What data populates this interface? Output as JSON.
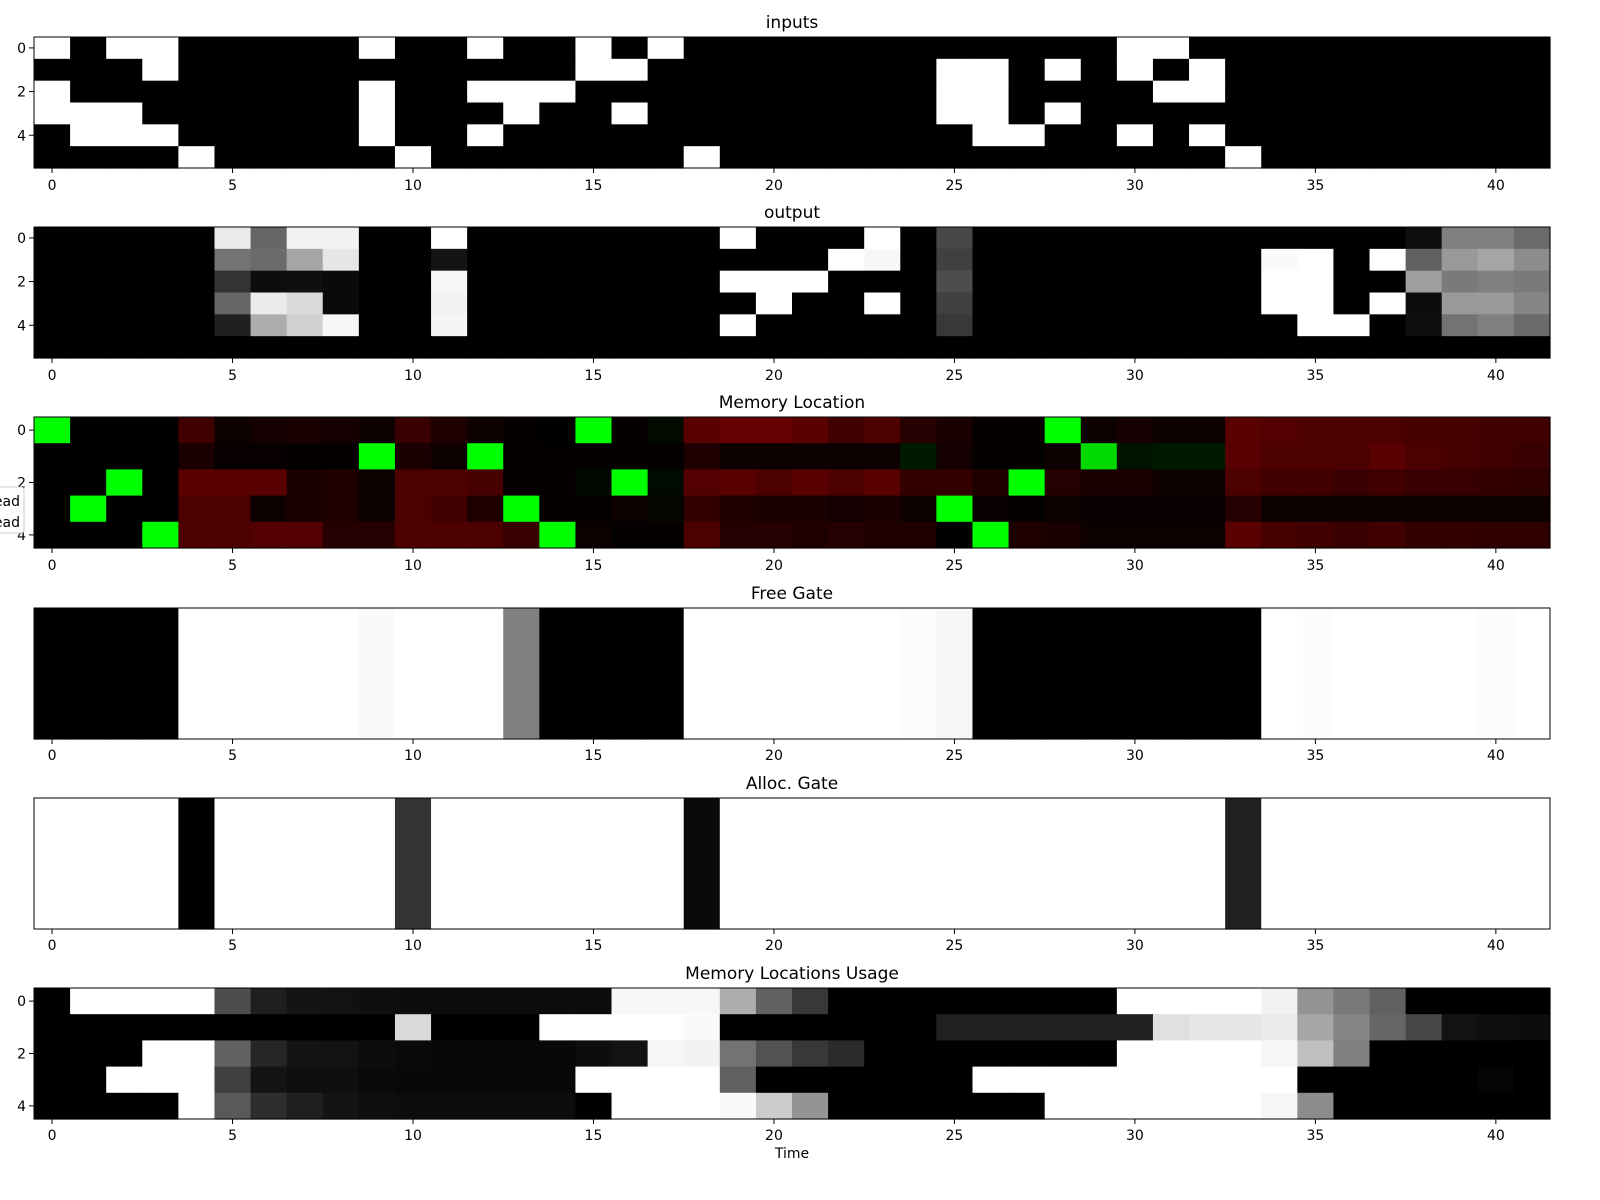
{
  "chart_data": [
    {
      "type": "heatmap",
      "title": "inputs",
      "colormap": "gray",
      "xlim": [
        0,
        41
      ],
      "xticks": [
        0,
        5,
        10,
        15,
        20,
        25,
        30,
        35,
        40
      ],
      "yticks": [
        0,
        2,
        4
      ],
      "values": [
        [
          1,
          0,
          1,
          1,
          0,
          0,
          0,
          0,
          0,
          1,
          0,
          0,
          1,
          0,
          0,
          1,
          0,
          1,
          0,
          0,
          0,
          0,
          0,
          0,
          0,
          0,
          0,
          0,
          0,
          0,
          1,
          1,
          0,
          0,
          0,
          0,
          0,
          0,
          0,
          0,
          0,
          0
        ],
        [
          0,
          0,
          0,
          1,
          0,
          0,
          0,
          0,
          0,
          0,
          0,
          0,
          0,
          0,
          0,
          1,
          1,
          0,
          0,
          0,
          0,
          0,
          0,
          0,
          0,
          1,
          1,
          0,
          1,
          0,
          1,
          0,
          1,
          0,
          0,
          0,
          0,
          0,
          0,
          0,
          0,
          0
        ],
        [
          1,
          0,
          0,
          0,
          0,
          0,
          0,
          0,
          0,
          1,
          0,
          0,
          1,
          1,
          1,
          0,
          0,
          0,
          0,
          0,
          0,
          0,
          0,
          0,
          0,
          1,
          1,
          0,
          0,
          0,
          0,
          1,
          1,
          0,
          0,
          0,
          0,
          0,
          0,
          0,
          0,
          0
        ],
        [
          1,
          1,
          1,
          0,
          0,
          0,
          0,
          0,
          0,
          1,
          0,
          0,
          0,
          1,
          0,
          0,
          1,
          0,
          0,
          0,
          0,
          0,
          0,
          0,
          0,
          1,
          1,
          0,
          1,
          0,
          0,
          0,
          0,
          0,
          0,
          0,
          0,
          0,
          0,
          0,
          0,
          0
        ],
        [
          0,
          1,
          1,
          1,
          0,
          0,
          0,
          0,
          0,
          1,
          0,
          0,
          1,
          0,
          0,
          0,
          0,
          0,
          0,
          0,
          0,
          0,
          0,
          0,
          0,
          0,
          1,
          1,
          0,
          0,
          1,
          0,
          1,
          0,
          0,
          0,
          0,
          0,
          0,
          0,
          0,
          0
        ],
        [
          0,
          0,
          0,
          0,
          1,
          0,
          0,
          0,
          0,
          0,
          1,
          0,
          0,
          0,
          0,
          0,
          0,
          0,
          1,
          0,
          0,
          0,
          0,
          0,
          0,
          0,
          0,
          0,
          0,
          0,
          0,
          0,
          0,
          1,
          0,
          0,
          0,
          0,
          0,
          0,
          0,
          0
        ]
      ]
    },
    {
      "type": "heatmap",
      "title": "output",
      "colormap": "gray",
      "xlim": [
        0,
        41
      ],
      "xticks": [
        0,
        5,
        10,
        15,
        20,
        25,
        30,
        35,
        40
      ],
      "yticks": [
        0,
        2,
        4
      ],
      "values": [
        [
          0,
          0,
          0,
          0,
          0,
          0.92,
          0.4,
          0.95,
          0.95,
          0,
          0,
          1,
          0,
          0,
          0,
          0,
          0,
          0,
          0,
          1,
          0,
          0,
          0,
          1,
          0,
          0.28,
          0,
          0,
          0,
          0,
          0,
          0,
          0,
          0,
          0,
          0,
          0,
          0,
          0.06,
          0.5,
          0.5,
          0.42
        ],
        [
          0,
          0,
          0,
          0,
          0,
          0.45,
          0.42,
          0.65,
          0.9,
          0,
          0,
          0.08,
          0,
          0,
          0,
          0,
          0,
          0,
          0,
          0,
          0,
          0,
          1,
          0.97,
          0,
          0.25,
          0,
          0,
          0,
          0,
          0,
          0,
          0,
          0,
          0.98,
          1,
          0,
          1,
          0.38,
          0.6,
          0.65,
          0.55
        ],
        [
          0,
          0,
          0,
          0,
          0,
          0.2,
          0.05,
          0.06,
          0.04,
          0,
          0,
          0.97,
          0,
          0,
          0,
          0,
          0,
          0,
          0,
          1,
          1,
          1,
          0,
          0,
          0,
          0.3,
          0,
          0,
          0,
          0,
          0,
          0,
          0,
          0,
          1,
          1,
          0,
          0,
          0.62,
          0.48,
          0.5,
          0.48
        ],
        [
          0,
          0,
          0,
          0,
          0,
          0.4,
          0.92,
          0.85,
          0.04,
          0,
          0,
          0.95,
          0,
          0,
          0,
          0,
          0,
          0,
          0,
          0,
          1,
          0,
          0,
          1,
          0,
          0.25,
          0,
          0,
          0,
          0,
          0,
          0,
          0,
          0,
          1,
          1,
          0,
          1,
          0.05,
          0.6,
          0.6,
          0.52
        ],
        [
          0,
          0,
          0,
          0,
          0,
          0.12,
          0.68,
          0.82,
          0.97,
          0,
          0,
          0.96,
          0,
          0,
          0,
          0,
          0,
          0,
          0,
          1,
          0,
          0,
          0,
          0,
          0,
          0.22,
          0,
          0,
          0,
          0,
          0,
          0,
          0,
          0,
          0,
          1,
          1,
          0,
          0.06,
          0.45,
          0.5,
          0.42
        ],
        [
          0,
          0,
          0,
          0,
          0,
          0,
          0,
          0,
          0,
          0,
          0,
          0,
          0,
          0,
          0,
          0,
          0,
          0,
          0,
          0,
          0,
          0,
          0,
          0,
          0,
          0,
          0,
          0,
          0,
          0,
          0,
          0,
          0,
          0,
          0,
          0,
          0,
          0,
          0,
          0,
          0,
          0
        ]
      ]
    },
    {
      "type": "heatmap",
      "title": "Memory Location",
      "colormap": "red-green",
      "xlim": [
        0,
        41
      ],
      "xticks": [
        0,
        5,
        10,
        15,
        20,
        25,
        30,
        35,
        40
      ],
      "yticks": [
        0,
        2,
        4
      ],
      "legend": [
        "ead",
        "ead"
      ],
      "legend_position": "left",
      "green": [
        [
          1,
          0,
          0,
          0,
          0,
          0,
          0,
          0,
          0,
          0,
          0,
          0,
          0,
          0,
          0,
          1,
          0,
          0.04,
          0,
          0,
          0,
          0,
          0,
          0,
          0,
          0,
          0,
          0,
          1,
          0,
          0,
          0,
          0,
          0,
          0,
          0,
          0,
          0,
          0,
          0,
          0,
          0
        ],
        [
          0,
          0,
          0,
          0,
          0,
          0,
          0,
          0,
          0,
          1,
          0,
          0,
          1,
          0,
          0,
          0,
          0,
          0,
          0,
          0,
          0,
          0,
          0,
          0,
          0.1,
          0,
          0,
          0,
          0,
          0.85,
          0.08,
          0.1,
          0.1,
          0,
          0,
          0,
          0,
          0,
          0,
          0,
          0,
          0
        ],
        [
          0,
          0,
          1,
          0,
          0,
          0,
          0,
          0,
          0,
          0,
          0,
          0,
          0,
          0,
          0,
          0.03,
          1,
          0.04,
          0,
          0,
          0,
          0,
          0,
          0,
          0,
          0,
          0,
          1,
          0,
          0,
          0,
          0,
          0,
          0,
          0,
          0,
          0,
          0,
          0,
          0,
          0,
          0
        ],
        [
          0,
          1,
          0,
          0,
          0,
          0,
          0,
          0,
          0,
          0,
          0,
          0,
          0,
          1,
          0,
          0,
          0,
          0.02,
          0,
          0,
          0,
          0,
          0,
          0,
          0,
          1,
          0,
          0,
          0,
          0,
          0,
          0,
          0,
          0,
          0,
          0,
          0,
          0,
          0,
          0,
          0,
          0
        ],
        [
          0,
          0,
          0,
          1,
          0,
          0,
          0,
          0,
          0,
          0,
          0,
          0,
          0,
          0,
          1,
          0,
          0,
          0,
          0,
          0,
          0,
          0,
          0,
          0,
          0,
          0,
          1,
          0,
          0,
          0,
          0,
          0,
          0,
          0,
          0,
          0,
          0,
          0,
          0,
          0,
          0,
          0
        ]
      ],
      "red": [
        [
          0,
          0,
          0,
          0,
          0.25,
          0.05,
          0.08,
          0.1,
          0.08,
          0.05,
          0.22,
          0.12,
          0.05,
          0.02,
          0,
          0,
          0.02,
          0.02,
          0.35,
          0.4,
          0.4,
          0.35,
          0.25,
          0.3,
          0.15,
          0.1,
          0.02,
          0.02,
          0,
          0.05,
          0.08,
          0.05,
          0.05,
          0.35,
          0.32,
          0.3,
          0.3,
          0.3,
          0.28,
          0.28,
          0.25,
          0.25
        ],
        [
          0,
          0,
          0,
          0,
          0.1,
          0.03,
          0.03,
          0.02,
          0.02,
          0,
          0.1,
          0.05,
          0,
          0.02,
          0.02,
          0.02,
          0.02,
          0.02,
          0.12,
          0.05,
          0.05,
          0.05,
          0.05,
          0.05,
          0,
          0.08,
          0.02,
          0.02,
          0.05,
          0,
          0,
          0,
          0,
          0.35,
          0.3,
          0.3,
          0.3,
          0.35,
          0.3,
          0.28,
          0.25,
          0.22
        ],
        [
          0,
          0,
          0,
          0,
          0.35,
          0.35,
          0.35,
          0.1,
          0.12,
          0.05,
          0.3,
          0.3,
          0.28,
          0.02,
          0.02,
          0,
          0,
          0,
          0.32,
          0.35,
          0.3,
          0.35,
          0.3,
          0.35,
          0.2,
          0.2,
          0.12,
          0,
          0.15,
          0.1,
          0.1,
          0.05,
          0.05,
          0.3,
          0.25,
          0.25,
          0.22,
          0.25,
          0.22,
          0.22,
          0.2,
          0.18
        ],
        [
          0,
          0,
          0,
          0,
          0.3,
          0.3,
          0.05,
          0.1,
          0.12,
          0.05,
          0.3,
          0.25,
          0.12,
          0,
          0.02,
          0.02,
          0.05,
          0.02,
          0.2,
          0.12,
          0.1,
          0.1,
          0.08,
          0.1,
          0.05,
          0,
          0.03,
          0.02,
          0.05,
          0.03,
          0.03,
          0.03,
          0.03,
          0.15,
          0.05,
          0.05,
          0.05,
          0.05,
          0.05,
          0.05,
          0.05,
          0.05
        ],
        [
          0,
          0,
          0,
          0,
          0.3,
          0.3,
          0.32,
          0.32,
          0.15,
          0.15,
          0.3,
          0.3,
          0.3,
          0.22,
          0,
          0.05,
          0.02,
          0.02,
          0.3,
          0.15,
          0.15,
          0.12,
          0.15,
          0.12,
          0.12,
          0,
          0,
          0.12,
          0.1,
          0.05,
          0.05,
          0.05,
          0.05,
          0.35,
          0.28,
          0.25,
          0.22,
          0.25,
          0.2,
          0.2,
          0.18,
          0.18
        ]
      ]
    },
    {
      "type": "heatmap",
      "title": "Free Gate",
      "colormap": "gray",
      "xlim": [
        0,
        41
      ],
      "xticks": [
        0,
        5,
        10,
        15,
        20,
        25,
        30,
        35,
        40
      ],
      "yticks": [],
      "values": [
        [
          0,
          0,
          0,
          0,
          1,
          1,
          1,
          1,
          1,
          0.98,
          1,
          1,
          1,
          0.5,
          0,
          0,
          0,
          0,
          1,
          1,
          1,
          1,
          1,
          1,
          0.99,
          0.97,
          0,
          0,
          0,
          0,
          0,
          0,
          0,
          0,
          1,
          0.99,
          1,
          1,
          1,
          1,
          0.99,
          1
        ]
      ]
    },
    {
      "type": "heatmap",
      "title": "Alloc. Gate",
      "colormap": "gray",
      "xlim": [
        0,
        41
      ],
      "xticks": [
        0,
        5,
        10,
        15,
        20,
        25,
        30,
        35,
        40
      ],
      "yticks": [],
      "values": [
        [
          1,
          1,
          1,
          1,
          0,
          1,
          1,
          1,
          1,
          1,
          0.2,
          1,
          1,
          1,
          1,
          1,
          1,
          1,
          0.04,
          1,
          1,
          1,
          1,
          1,
          1,
          1,
          1,
          1,
          1,
          1,
          1,
          1,
          1,
          0.13,
          1,
          1,
          1,
          1,
          1,
          1,
          1,
          1
        ]
      ]
    },
    {
      "type": "heatmap",
      "title": "Memory Locations Usage",
      "colormap": "gray",
      "xlim": [
        0,
        41
      ],
      "xticks": [
        0,
        5,
        10,
        15,
        20,
        25,
        30,
        35,
        40
      ],
      "yticks": [
        0,
        2,
        4
      ],
      "xlabel": "Time",
      "values": [
        [
          0,
          1,
          1,
          1,
          1,
          0.3,
          0.12,
          0.08,
          0.07,
          0.06,
          0.05,
          0.05,
          0.05,
          0.05,
          0.05,
          0.05,
          0.97,
          0.97,
          0.97,
          0.68,
          0.38,
          0.22,
          0,
          0,
          0,
          0,
          0,
          0,
          0,
          0,
          1,
          1,
          1,
          1,
          0.95,
          0.58,
          0.48,
          0.38,
          0,
          0,
          0,
          0
        ],
        [
          0,
          0,
          0,
          0,
          0,
          0,
          0,
          0,
          0,
          0,
          0.85,
          0,
          0,
          0,
          1,
          1,
          1,
          1,
          0.98,
          0,
          0,
          0,
          0,
          0,
          0,
          0.13,
          0.13,
          0.13,
          0.13,
          0.13,
          0.13,
          0.88,
          0.9,
          0.9,
          0.92,
          0.65,
          0.52,
          0.4,
          0.28,
          0.07,
          0.06,
          0.05
        ],
        [
          0,
          0,
          0,
          1,
          1,
          0.38,
          0.15,
          0.08,
          0.07,
          0.05,
          0.04,
          0.03,
          0.03,
          0.03,
          0.03,
          0.05,
          0.07,
          0.97,
          0.95,
          0.45,
          0.32,
          0.22,
          0.17,
          0,
          0,
          0,
          0,
          0,
          0,
          0,
          1,
          1,
          1,
          1,
          0.97,
          0.75,
          0.5,
          0,
          0,
          0,
          0,
          0
        ],
        [
          0,
          0,
          1,
          1,
          1,
          0.25,
          0.08,
          0.06,
          0.06,
          0.04,
          0.03,
          0.03,
          0.03,
          0.03,
          0.03,
          1,
          1,
          1,
          1,
          0.38,
          0,
          0,
          0,
          0,
          0,
          0,
          1,
          1,
          1,
          1,
          1,
          1,
          1,
          1,
          1,
          0,
          0,
          0,
          0,
          0,
          0.02,
          0
        ],
        [
          0,
          0,
          0,
          0,
          1,
          0.35,
          0.18,
          0.12,
          0.08,
          0.06,
          0.05,
          0.05,
          0.05,
          0.05,
          0.05,
          0,
          1,
          1,
          1,
          0.98,
          0.8,
          0.58,
          0,
          0,
          0,
          0,
          0,
          0,
          1,
          1,
          1,
          1,
          1,
          1,
          0.97,
          0.55,
          0,
          0,
          0,
          0,
          0,
          0
        ]
      ]
    }
  ]
}
